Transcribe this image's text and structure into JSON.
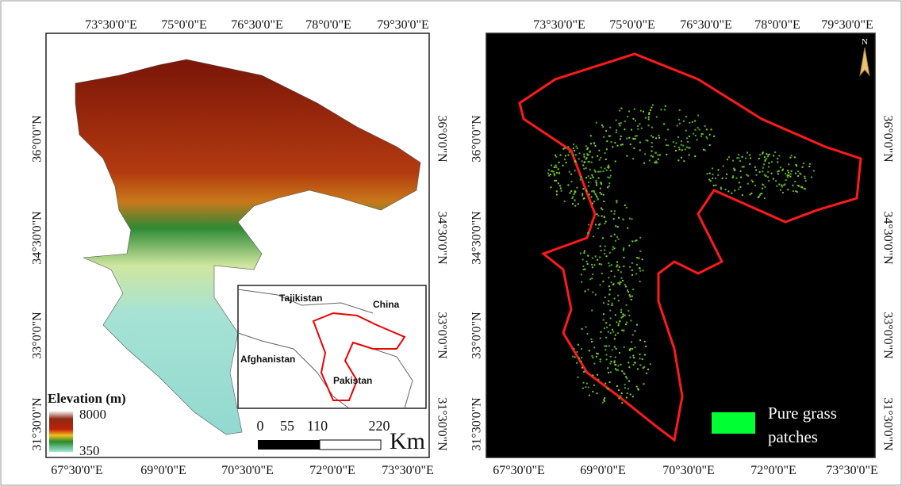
{
  "left_panel": {
    "top_labels": [
      "73°30'0\"E",
      "75°0'0\"E",
      "76°30'0\"E",
      "78°0'0\"E",
      "79°30'0\"E"
    ],
    "bottom_labels": [
      "67°30'0\"E",
      "69°0'0\"E",
      "70°30'0\"E",
      "72°0'0\"E",
      "73°30'0\"E"
    ],
    "left_labels": [
      "36°0'0\"N",
      "34°30'0\"N",
      "33°0'0\"N",
      "31°30'0\"N"
    ],
    "right_labels": [
      "36°0'0\"N",
      "34°30'0\"N",
      "33°0'0\"N",
      "31°30'0\"N"
    ],
    "legend": {
      "title": "Elevation (m)",
      "max": 8000,
      "min": 350
    },
    "inset": {
      "labels": [
        "Tajikistan",
        "China",
        "Afghanistan",
        "Pakistan"
      ]
    },
    "scale_bar": {
      "ticks": [
        0,
        55,
        110,
        220
      ],
      "unit": "Km"
    }
  },
  "right_panel": {
    "top_labels": [
      "73°30'0\"E",
      "75°0'0\"E",
      "76°30'0\"E",
      "78°0'0\"E",
      "79°30'0\"E"
    ],
    "bottom_labels": [
      "67°30'0\"E",
      "69°0'0\"E",
      "70°30'0\"E",
      "72°0'0\"E",
      "73°30'0\"E"
    ],
    "left_labels": [
      "36°0'0\"N",
      "34°30'0\"N",
      "33°0'0\"N",
      "31°30'0\"N"
    ],
    "right_labels": [
      "36°0'0\"N",
      "34°30'0\"N",
      "33°0'0\"N",
      "31°30'0\"N"
    ],
    "north": "N",
    "legend_label": "Pure grass patches"
  }
}
